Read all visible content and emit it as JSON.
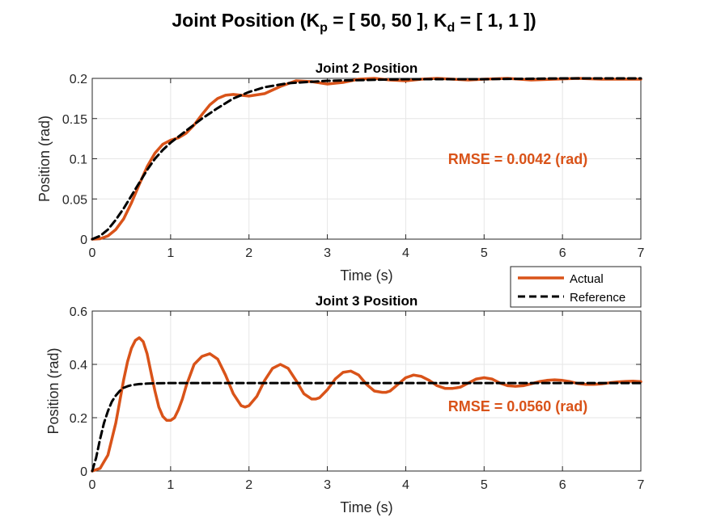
{
  "figure": {
    "title_parts": {
      "t1": "Joint Position (K",
      "s1": "p",
      "t2": " = [ 50, 50 ], K",
      "s2": "d",
      "t3": " = [ 1, 1 ])"
    }
  },
  "legend": {
    "entries": [
      "Actual",
      "Reference"
    ]
  },
  "colors": {
    "actual": "#D95319",
    "reference": "#000000",
    "grid": "#E6E6E6"
  },
  "chart_data": [
    {
      "type": "line",
      "title": "Joint 2 Position",
      "xlabel": "Time (s)",
      "ylabel": "Position (rad)",
      "xlim": [
        0,
        7
      ],
      "ylim": [
        0,
        0.2
      ],
      "xticks": [
        0,
        1,
        2,
        3,
        4,
        5,
        6,
        7
      ],
      "yticks": [
        0,
        0.05,
        0.1,
        0.15,
        0.2
      ],
      "ytick_labels": [
        "0",
        "0.05",
        "0.1",
        "0.15",
        "0.2"
      ],
      "grid": true,
      "annotation": "RMSE = 0.0042 (rad)",
      "series": [
        {
          "name": "Actual",
          "x": [
            0,
            0.1,
            0.2,
            0.3,
            0.4,
            0.5,
            0.6,
            0.7,
            0.8,
            0.9,
            1.0,
            1.1,
            1.2,
            1.3,
            1.4,
            1.5,
            1.6,
            1.7,
            1.8,
            1.9,
            2.0,
            2.2,
            2.4,
            2.6,
            2.8,
            3.0,
            3.2,
            3.4,
            3.6,
            3.8,
            4.0,
            4.2,
            4.4,
            4.6,
            4.8,
            5.0,
            5.3,
            5.6,
            5.9,
            6.2,
            6.5,
            6.8,
            7.0
          ],
          "y": [
            0,
            0.0005,
            0.004,
            0.012,
            0.025,
            0.045,
            0.068,
            0.09,
            0.107,
            0.118,
            0.123,
            0.126,
            0.132,
            0.142,
            0.155,
            0.167,
            0.175,
            0.179,
            0.18,
            0.179,
            0.178,
            0.181,
            0.19,
            0.197,
            0.196,
            0.193,
            0.195,
            0.199,
            0.2,
            0.198,
            0.197,
            0.199,
            0.2,
            0.199,
            0.198,
            0.199,
            0.2,
            0.198,
            0.199,
            0.2,
            0.199,
            0.199,
            0.199
          ]
        },
        {
          "name": "Reference",
          "x": [
            0,
            0.1,
            0.2,
            0.3,
            0.4,
            0.5,
            0.6,
            0.7,
            0.8,
            0.9,
            1.0,
            1.2,
            1.4,
            1.6,
            1.8,
            2.0,
            2.2,
            2.5,
            3.0,
            3.5,
            4.0,
            5.0,
            6.0,
            7.0
          ],
          "y": [
            0,
            0.004,
            0.012,
            0.024,
            0.038,
            0.054,
            0.07,
            0.086,
            0.1,
            0.111,
            0.12,
            0.135,
            0.15,
            0.163,
            0.175,
            0.183,
            0.189,
            0.194,
            0.197,
            0.198,
            0.199,
            0.199,
            0.2,
            0.2
          ]
        }
      ]
    },
    {
      "type": "line",
      "title": "Joint 3 Position",
      "xlabel": "Time (s)",
      "ylabel": "Position (rad)",
      "xlim": [
        0,
        7
      ],
      "ylim": [
        0,
        0.6
      ],
      "xticks": [
        0,
        1,
        2,
        3,
        4,
        5,
        6,
        7
      ],
      "yticks": [
        0,
        0.2,
        0.4,
        0.6
      ],
      "ytick_labels": [
        "0",
        "0.2",
        "0.4",
        "0.6"
      ],
      "grid": true,
      "annotation": "RMSE = 0.0560 (rad)",
      "series": [
        {
          "name": "Actual",
          "x": [
            0,
            0.1,
            0.2,
            0.3,
            0.35,
            0.4,
            0.45,
            0.5,
            0.55,
            0.6,
            0.65,
            0.7,
            0.75,
            0.8,
            0.85,
            0.9,
            0.95,
            1.0,
            1.05,
            1.1,
            1.15,
            1.2,
            1.3,
            1.4,
            1.5,
            1.6,
            1.7,
            1.8,
            1.9,
            1.95,
            2.0,
            2.1,
            2.2,
            2.3,
            2.4,
            2.5,
            2.6,
            2.7,
            2.8,
            2.85,
            2.9,
            3.0,
            3.1,
            3.2,
            3.3,
            3.4,
            3.5,
            3.6,
            3.7,
            3.75,
            3.8,
            3.9,
            4.0,
            4.1,
            4.2,
            4.3,
            4.4,
            4.5,
            4.6,
            4.65,
            4.7,
            4.8,
            4.9,
            5.0,
            5.1,
            5.2,
            5.3,
            5.4,
            5.5,
            5.6,
            5.7,
            5.8,
            5.9,
            6.0,
            6.1,
            6.2,
            6.3,
            6.4,
            6.5,
            6.6,
            6.7,
            6.8,
            6.9,
            7.0
          ],
          "y": [
            0,
            0.01,
            0.06,
            0.18,
            0.26,
            0.34,
            0.41,
            0.46,
            0.49,
            0.5,
            0.485,
            0.44,
            0.37,
            0.3,
            0.24,
            0.205,
            0.19,
            0.19,
            0.2,
            0.23,
            0.27,
            0.32,
            0.4,
            0.43,
            0.44,
            0.42,
            0.36,
            0.29,
            0.245,
            0.24,
            0.245,
            0.28,
            0.34,
            0.385,
            0.4,
            0.385,
            0.34,
            0.29,
            0.27,
            0.27,
            0.275,
            0.305,
            0.345,
            0.37,
            0.375,
            0.36,
            0.325,
            0.3,
            0.295,
            0.295,
            0.3,
            0.325,
            0.35,
            0.36,
            0.355,
            0.34,
            0.32,
            0.31,
            0.31,
            0.312,
            0.315,
            0.33,
            0.345,
            0.35,
            0.345,
            0.33,
            0.32,
            0.318,
            0.32,
            0.327,
            0.335,
            0.34,
            0.342,
            0.34,
            0.335,
            0.328,
            0.325,
            0.325,
            0.327,
            0.331,
            0.334,
            0.336,
            0.337,
            0.335
          ]
        },
        {
          "name": "Reference",
          "x": [
            0,
            0.05,
            0.1,
            0.15,
            0.2,
            0.25,
            0.3,
            0.35,
            0.4,
            0.45,
            0.5,
            0.6,
            0.7,
            0.8,
            1.0,
            2.0,
            3.0,
            4.0,
            5.0,
            6.0,
            7.0
          ],
          "y": [
            0,
            0.05,
            0.12,
            0.18,
            0.225,
            0.26,
            0.283,
            0.3,
            0.312,
            0.318,
            0.322,
            0.326,
            0.328,
            0.329,
            0.33,
            0.33,
            0.33,
            0.33,
            0.33,
            0.33,
            0.33
          ]
        }
      ]
    }
  ]
}
